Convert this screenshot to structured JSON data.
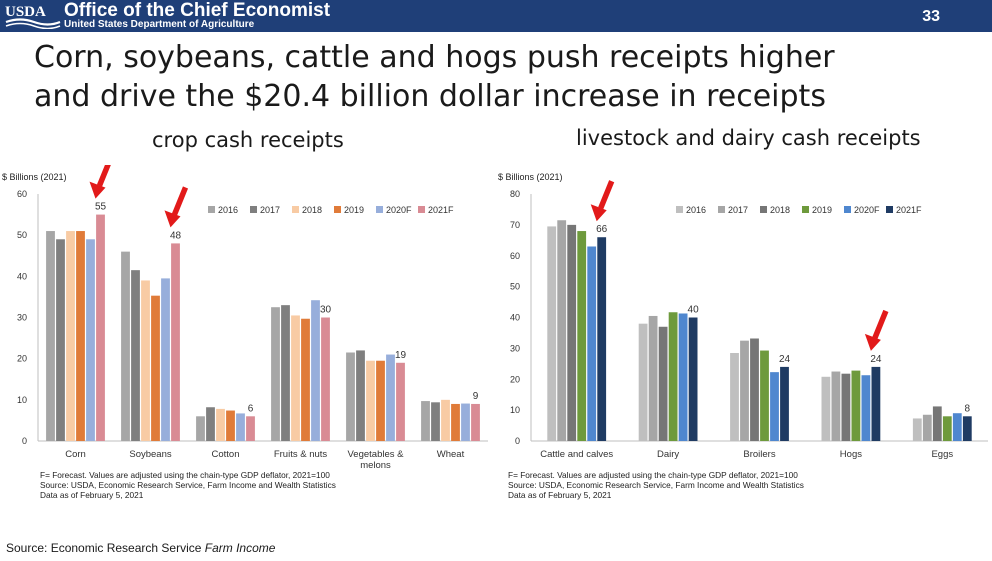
{
  "header": {
    "logo_text": "USDA",
    "org_title": "Office of the Chief Economist",
    "org_subtitle": "United States Department of Agriculture",
    "page_number": "33"
  },
  "headline": {
    "line1": "Corn, soybeans, cattle and hogs push receipts higher",
    "line2": "and drive the $20.4 billion dollar increase in receipts"
  },
  "footer": {
    "source_prefix": "Source: Economic Research Service ",
    "source_title": "Farm Income"
  },
  "chart_data": [
    {
      "type": "bar",
      "caption": "crop cash receipts",
      "ylabel": "$ Billions (2021)",
      "ylim": [
        0,
        60
      ],
      "yticks": [
        0,
        10,
        20,
        30,
        40,
        50,
        60
      ],
      "grid": false,
      "legend_position": "top-right",
      "categories": [
        "Corn",
        "Soybeans",
        "Cotton",
        "Fruits & nuts",
        "Vegetables & melons",
        "Wheat"
      ],
      "category_lines": [
        [
          "Corn"
        ],
        [
          "Soybeans"
        ],
        [
          "Cotton"
        ],
        [
          "Fruits & nuts"
        ],
        [
          "Vegetables &",
          "melons"
        ],
        [
          "Wheat"
        ]
      ],
      "series": [
        {
          "name": "2016",
          "color": "#a6a6a6",
          "values": [
            51,
            46,
            6,
            32.5,
            21.5,
            9.7
          ]
        },
        {
          "name": "2017",
          "color": "#7f7f7f",
          "values": [
            49,
            41.5,
            8.2,
            33,
            22,
            9.4
          ]
        },
        {
          "name": "2018",
          "color": "#f8cba4",
          "values": [
            51,
            39,
            7.8,
            30.5,
            19.5,
            10
          ]
        },
        {
          "name": "2019",
          "color": "#e07b39",
          "values": [
            51,
            35.3,
            7.4,
            29.7,
            19.5,
            9
          ]
        },
        {
          "name": "2020F",
          "color": "#97aedb",
          "values": [
            49,
            39.5,
            6.7,
            34.2,
            21,
            9.1
          ]
        },
        {
          "name": "2021F",
          "color": "#d98b94",
          "values": [
            55,
            48,
            6,
            30,
            19,
            9
          ]
        }
      ],
      "data_labels": [
        "55",
        "48",
        "6",
        "30",
        "19",
        "9"
      ],
      "arrow_categories": [
        0,
        1
      ],
      "notes": [
        "F= Forecast.  Values are adjusted using the chain-type GDP deflator, 2021=100",
        "Source: USDA, Economic Research Service, Farm Income and Wealth Statistics",
        "Data as of February 5, 2021"
      ]
    },
    {
      "type": "bar",
      "caption": "livestock and dairy cash receipts",
      "ylabel": "$ Billions (2021)",
      "ylim": [
        0,
        80
      ],
      "yticks": [
        0,
        10,
        20,
        30,
        40,
        50,
        60,
        70,
        80
      ],
      "grid": false,
      "legend_position": "top-right",
      "categories": [
        "Cattle and calves",
        "Dairy",
        "Broilers",
        "Hogs",
        "Eggs"
      ],
      "category_lines": [
        [
          "Cattle and calves"
        ],
        [
          "Dairy"
        ],
        [
          "Broilers"
        ],
        [
          "Hogs"
        ],
        [
          "Eggs"
        ]
      ],
      "series": [
        {
          "name": "2016",
          "color": "#bfbfbf",
          "values": [
            69.5,
            38,
            28.5,
            20.8,
            7.3
          ]
        },
        {
          "name": "2017",
          "color": "#a6a6a6",
          "values": [
            71.5,
            40.5,
            32.5,
            22.5,
            8.5
          ]
        },
        {
          "name": "2018",
          "color": "#767676",
          "values": [
            70,
            37,
            33.2,
            21.8,
            11.2
          ]
        },
        {
          "name": "2019",
          "color": "#6e9a3c",
          "values": [
            68,
            41.7,
            29.3,
            22.8,
            8
          ]
        },
        {
          "name": "2020F",
          "color": "#4f87cf",
          "values": [
            63,
            41.3,
            22.3,
            21.3,
            9
          ]
        },
        {
          "name": "2021F",
          "color": "#1f3b63",
          "values": [
            66,
            40,
            24,
            24,
            8
          ]
        }
      ],
      "data_labels": [
        "66",
        "40",
        "24",
        "24",
        "8"
      ],
      "arrow_categories": [
        0,
        3
      ],
      "notes": [
        "F= Forecast.  Values are adjusted using the chain-type GDP deflator, 2021=100",
        "Source: USDA, Economic Research Service, Farm Income and Wealth Statistics",
        "Data as of February 5, 2021"
      ]
    }
  ]
}
